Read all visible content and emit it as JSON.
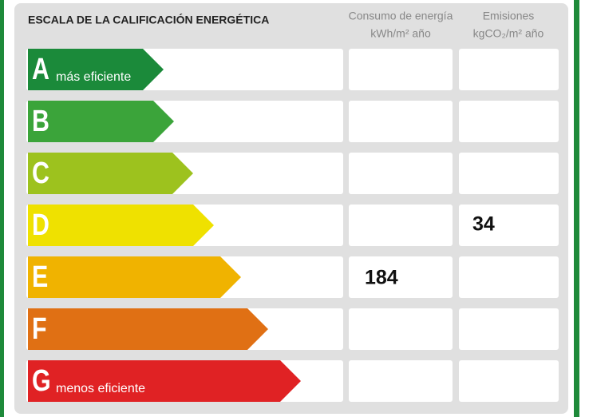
{
  "header": {
    "title": "ESCALA DE LA CALIFICACIÓN ENERGÉTICA",
    "col1": [
      "Consumo de energía",
      "kWh/m² año"
    ],
    "col2": [
      "Emisiones",
      "kgCO₂/m² año"
    ]
  },
  "rows": [
    {
      "letter": "A",
      "label": "más eficiente",
      "color": "#1b8a3a"
    },
    {
      "letter": "B",
      "color": "#3ba43a"
    },
    {
      "letter": "C",
      "color": "#9dc21e"
    },
    {
      "letter": "D",
      "color": "#efe100",
      "emisiones": "34"
    },
    {
      "letter": "E",
      "color": "#f0b300",
      "consumo": "184"
    },
    {
      "letter": "F",
      "color": "#e07014"
    },
    {
      "letter": "G",
      "label": "menos eficiente",
      "color": "#e02224"
    }
  ]
}
